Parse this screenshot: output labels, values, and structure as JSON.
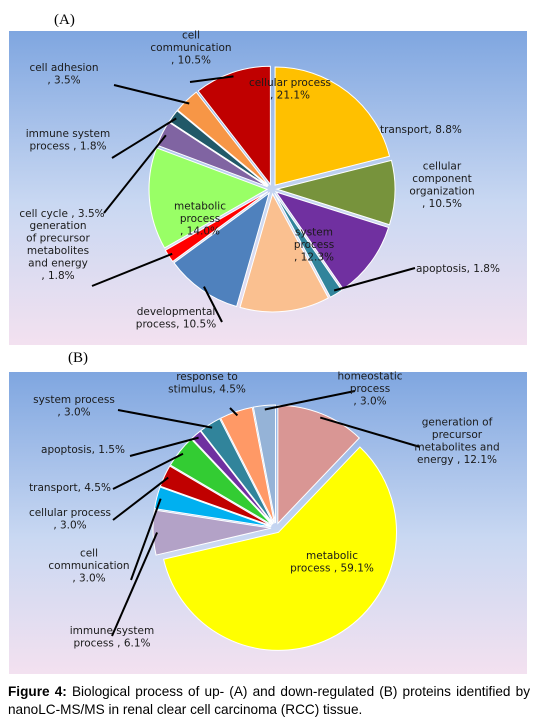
{
  "panels": {
    "a_letter": "(A)",
    "b_letter": "(B)"
  },
  "caption": {
    "label": "Figure 4:",
    "text": "Biological process of up- (A) and down-regulated (B) proteins identified by nanoLC-MS/MS in renal clear cell carcinoma (RCC) tissue."
  },
  "chart_data": [
    {
      "type": "pie",
      "panel": "(A)",
      "title": "",
      "start_angle_deg": -90,
      "slices": [
        {
          "label": "cellular process , 21.1%",
          "lines": [
            "cellular process",
            ", 21.1%"
          ],
          "value": 21.1,
          "color": "#FFC000"
        },
        {
          "label": "transport, 8.8%",
          "lines": [
            "transport, 8.8%"
          ],
          "value": 8.8,
          "color": "#77933C"
        },
        {
          "label": "cellular component organization , 10.5%",
          "lines": [
            "cellular",
            "component",
            "organization",
            ", 10.5%"
          ],
          "value": 10.5,
          "color": "#7030A0"
        },
        {
          "label": "apoptosis, 1.8%",
          "lines": [
            "apoptosis, 1.8%"
          ],
          "value": 1.8,
          "color": "#31849B"
        },
        {
          "label": "system process , 12.3%",
          "lines": [
            "system",
            "process",
            ", 12.3%"
          ],
          "value": 12.3,
          "color": "#FAC090"
        },
        {
          "label": "developmental process, 10.5%",
          "lines": [
            "developmental",
            "process, 10.5%"
          ],
          "value": 10.5,
          "color": "#4F81BD"
        },
        {
          "label": "generation of precursor metabolites and energy , 1.8%",
          "lines": [
            "generation",
            "of precursor",
            "metabolites",
            "and energy",
            ", 1.8%"
          ],
          "value": 1.8,
          "color": "#FF0000"
        },
        {
          "label": "metabolic process , 14.0%",
          "lines": [
            "metabolic",
            "process",
            ", 14.0%"
          ],
          "value": 14.0,
          "color": "#99FF66"
        },
        {
          "label": "cell cycle , 3.5%",
          "lines": [
            "cell cycle , 3.5%"
          ],
          "value": 3.5,
          "color": "#8064A2"
        },
        {
          "label": "immune system process , 1.8%",
          "lines": [
            "immune system",
            "process , 1.8%"
          ],
          "value": 1.8,
          "color": "#215968"
        },
        {
          "label": "cell adhesion , 3.5%",
          "lines": [
            "cell adhesion",
            ", 3.5%"
          ],
          "value": 3.5,
          "color": "#F79646"
        },
        {
          "label": "cell communication , 10.5%",
          "lines": [
            "cell",
            "communication",
            ", 10.5%"
          ],
          "value": 10.5,
          "color": "#C00000"
        }
      ]
    },
    {
      "type": "pie",
      "panel": "(B)",
      "title": "",
      "start_angle_deg": -90,
      "slices": [
        {
          "label": "generation of precursor metabolites and energy , 12.1%",
          "lines": [
            "generation of",
            "precursor",
            "metabolites and",
            "energy , 12.1%"
          ],
          "value": 12.1,
          "color": "#D99694"
        },
        {
          "label": "metabolic process , 59.1%",
          "lines": [
            "metabolic",
            "process , 59.1%"
          ],
          "value": 59.1,
          "color": "#FFFF00"
        },
        {
          "label": "immune system process , 6.1%",
          "lines": [
            "immune system",
            "process , 6.1%"
          ],
          "value": 6.1,
          "color": "#B3A2C7"
        },
        {
          "label": "cell communication , 3.0%",
          "lines": [
            "cell",
            "communication",
            ", 3.0%"
          ],
          "value": 3.0,
          "color": "#00B0F0"
        },
        {
          "label": "cellular process , 3.0%",
          "lines": [
            "cellular process",
            ", 3.0%"
          ],
          "value": 3.0,
          "color": "#C00000"
        },
        {
          "label": "transport, 4.5%",
          "lines": [
            "transport, 4.5%"
          ],
          "value": 4.5,
          "color": "#33CC33"
        },
        {
          "label": "apoptosis, 1.5%",
          "lines": [
            "apoptosis, 1.5%"
          ],
          "value": 1.5,
          "color": "#7030A0"
        },
        {
          "label": "system process , 3.0%",
          "lines": [
            "system process",
            ", 3.0%"
          ],
          "value": 3.0,
          "color": "#31849B"
        },
        {
          "label": "response to stimulus, 4.5%",
          "lines": [
            "response to",
            "stimulus, 4.5%"
          ],
          "value": 4.5,
          "color": "#FF9966"
        },
        {
          "label": "homeostatic process , 3.0%",
          "lines": [
            "homeostatic",
            "process",
            ", 3.0%"
          ],
          "value": 3.0,
          "color": "#95B3D7"
        }
      ]
    }
  ]
}
